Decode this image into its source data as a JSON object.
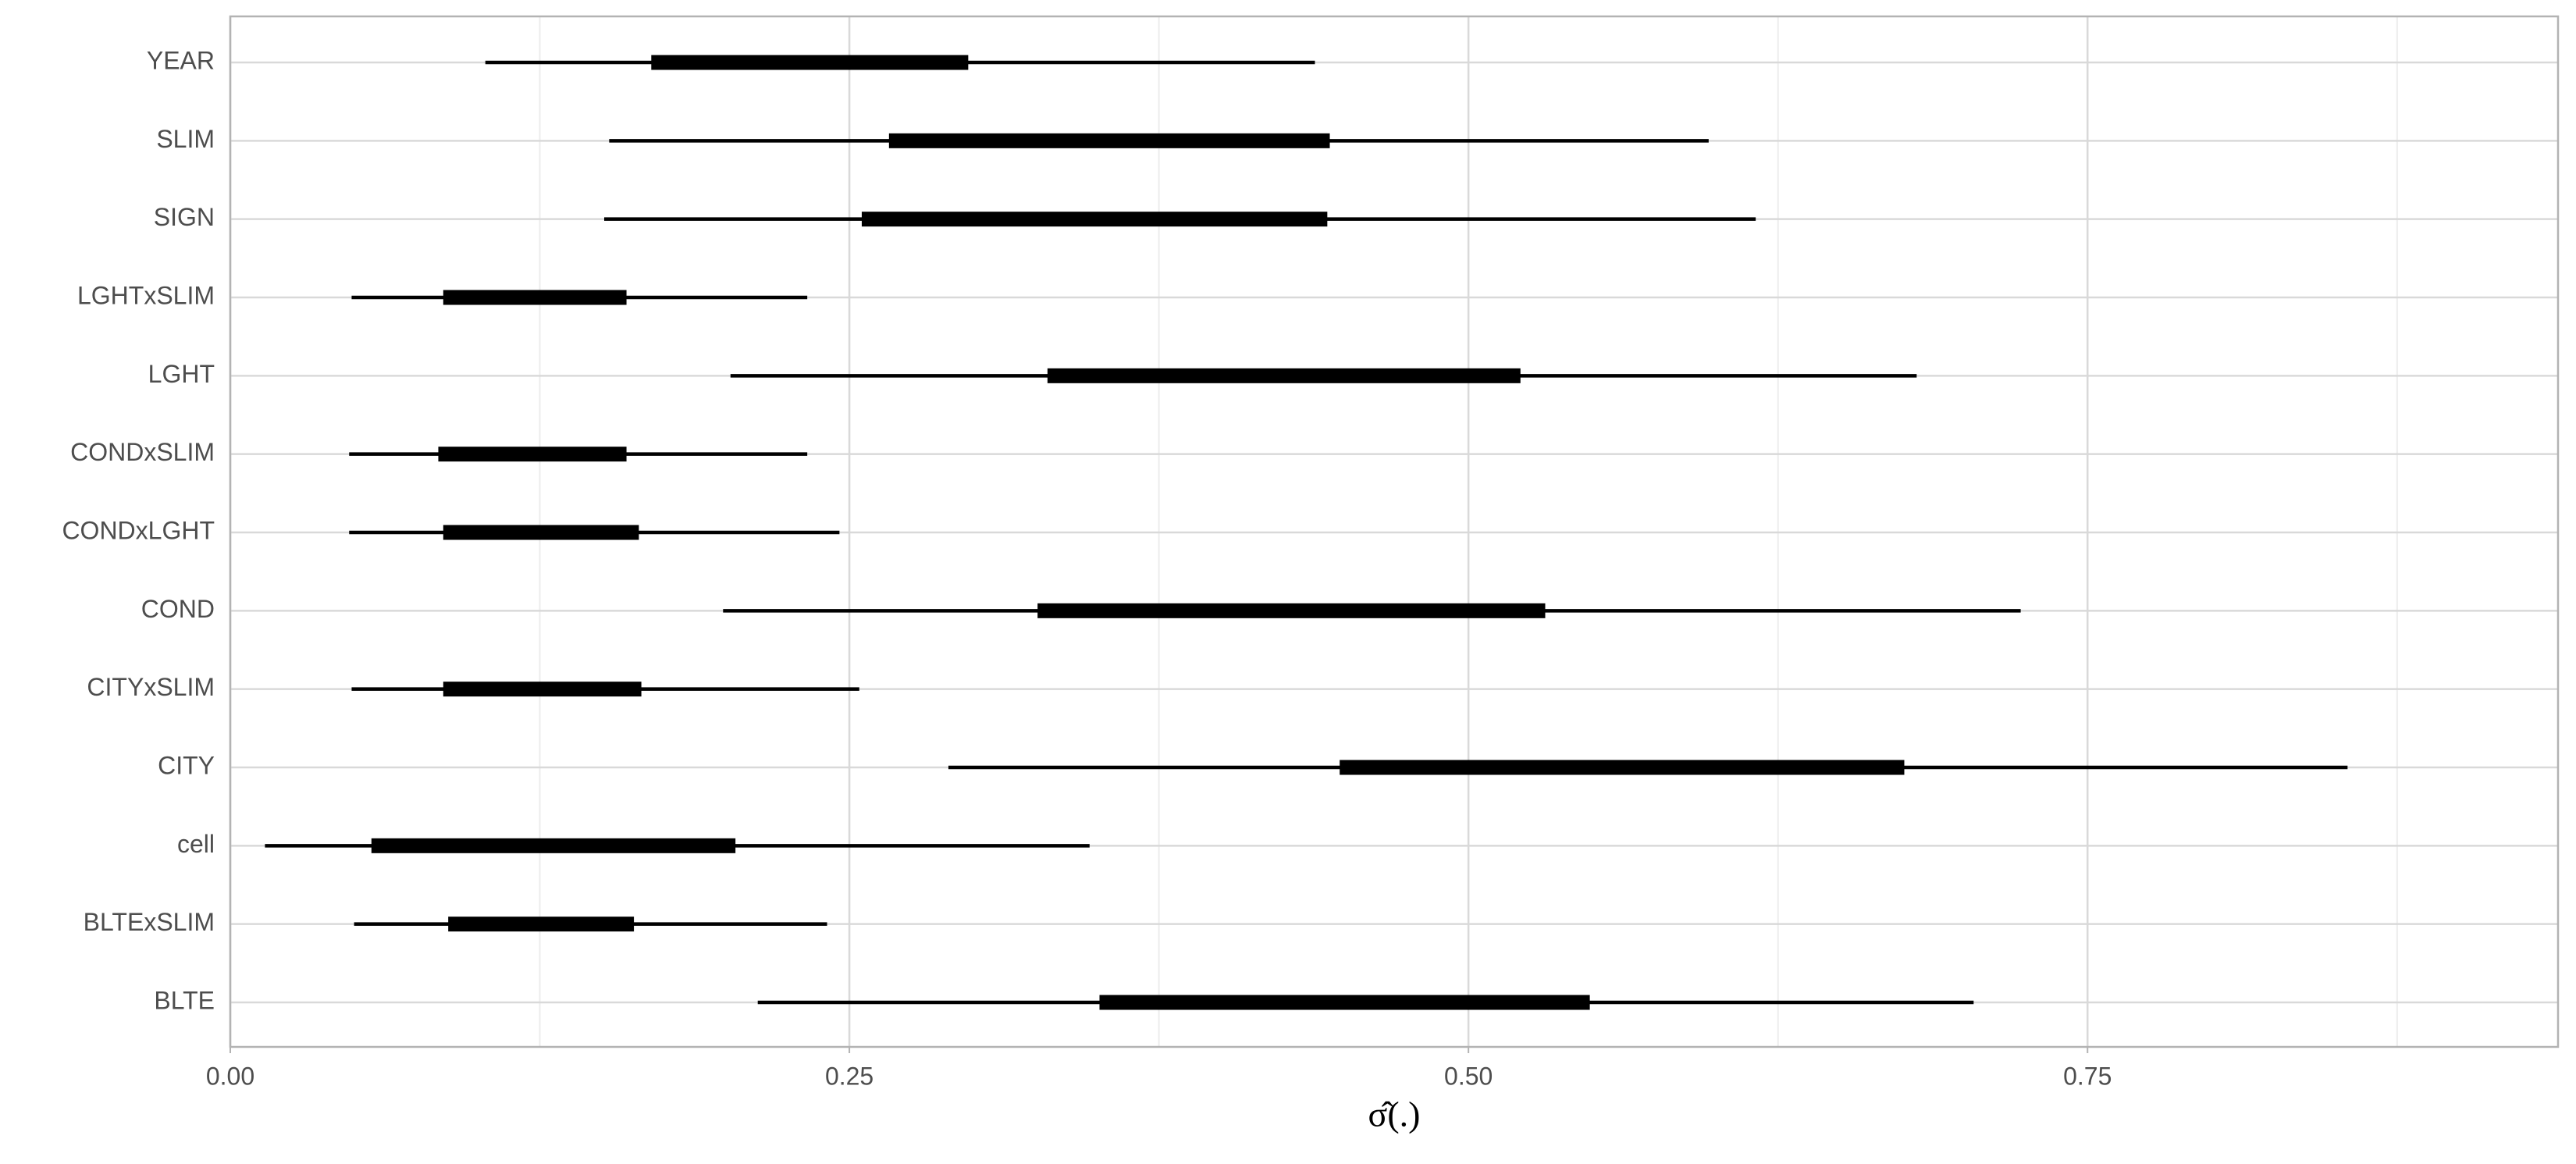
{
  "chart_data": {
    "type": "interval",
    "x_label": "σ̂(.)",
    "categories": [
      "BLTE",
      "BLTExSLIM",
      "cell",
      "CITY",
      "CITYxSLIM",
      "COND",
      "CONDxLGHT",
      "CONDxSLIM",
      "LGHT",
      "LGHTxSLIM",
      "SIGN",
      "SLIM",
      "YEAR"
    ],
    "outer_lower": [
      0.213,
      0.05,
      0.014,
      0.29,
      0.049,
      0.199,
      0.048,
      0.048,
      0.202,
      0.049,
      0.151,
      0.153,
      0.103
    ],
    "inner_lower": [
      0.351,
      0.088,
      0.057,
      0.448,
      0.086,
      0.326,
      0.086,
      0.084,
      0.33,
      0.086,
      0.255,
      0.266,
      0.17
    ],
    "inner_upper": [
      0.549,
      0.163,
      0.204,
      0.676,
      0.166,
      0.531,
      0.165,
      0.16,
      0.521,
      0.16,
      0.443,
      0.444,
      0.298
    ],
    "outer_upper": [
      0.704,
      0.241,
      0.347,
      0.855,
      0.254,
      0.723,
      0.246,
      0.233,
      0.681,
      0.233,
      0.616,
      0.597,
      0.438
    ],
    "color": "#000000",
    "xlim": [
      0,
      0.94
    ],
    "xticks": [
      {
        "value": 0,
        "label": "0.00"
      },
      0.25,
      {
        "value": 0.5,
        "label": "0.50"
      },
      0.75
    ],
    "minor_xticks": [
      0.125,
      0.375,
      0.625,
      0.875
    ],
    "grid": true
  }
}
